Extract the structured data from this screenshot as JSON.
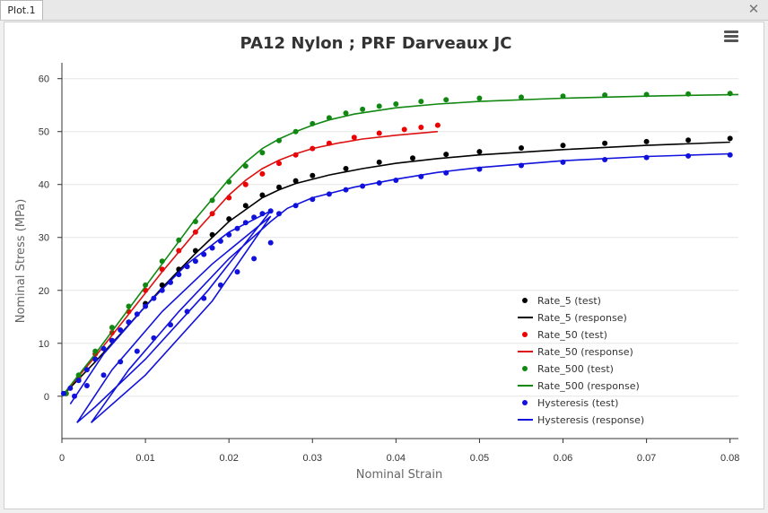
{
  "window": {
    "tab_label": "Plot.1",
    "close_glyph": "✕"
  },
  "toolbar": {
    "menu_icon": "hamburger-menu-icon"
  },
  "chart_data": {
    "type": "scatter",
    "title": "PA12 Nylon ; PRF Darveaux JC",
    "xlabel": "Nominal Strain",
    "ylabel": "Nominal Stress (MPa)",
    "xlim": [
      0,
      0.081
    ],
    "ylim": [
      -8,
      63
    ],
    "xticks": [
      0,
      0.01,
      0.02,
      0.03,
      0.04,
      0.05,
      0.06,
      0.07,
      0.08
    ],
    "xtick_labels": [
      "0",
      "0.01",
      "0.02",
      "0.03",
      "0.04",
      "0.05",
      "0.06",
      "0.07",
      "0.08"
    ],
    "yticks": [
      0,
      10,
      20,
      30,
      40,
      50,
      60
    ],
    "ytick_labels": [
      "0",
      "10",
      "20",
      "30",
      "40",
      "50",
      "60"
    ],
    "grid": "horizontal",
    "legend_position": "bottom-right",
    "series": [
      {
        "name": "Rate_5 (test)",
        "kind": "markers",
        "color": "#000000",
        "x": [
          0.0005,
          0.002,
          0.004,
          0.006,
          0.008,
          0.01,
          0.012,
          0.014,
          0.016,
          0.018,
          0.02,
          0.022,
          0.024,
          0.026,
          0.028,
          0.03,
          0.034,
          0.038,
          0.042,
          0.046,
          0.05,
          0.055,
          0.06,
          0.065,
          0.07,
          0.075,
          0.08
        ],
        "y": [
          0.5,
          3,
          7,
          10.5,
          14,
          17.5,
          21,
          24,
          27.5,
          30.5,
          33.5,
          36,
          38,
          39.5,
          40.7,
          41.7,
          43,
          44.2,
          45,
          45.7,
          46.2,
          46.9,
          47.4,
          47.8,
          48.1,
          48.4,
          48.7
        ]
      },
      {
        "name": "Rate_5 (response)",
        "kind": "line",
        "color": "#000000",
        "x": [
          0,
          0.004,
          0.008,
          0.012,
          0.016,
          0.02,
          0.024,
          0.026,
          0.028,
          0.032,
          0.036,
          0.04,
          0.045,
          0.05,
          0.06,
          0.07,
          0.08
        ],
        "y": [
          0,
          6.5,
          13.5,
          20.5,
          27,
          33,
          37.5,
          39,
          40.2,
          41.8,
          43,
          44,
          44.9,
          45.6,
          46.6,
          47.4,
          48
        ]
      },
      {
        "name": "Rate_50 (test)",
        "kind": "markers",
        "color": "#ee0000",
        "x": [
          0.0005,
          0.002,
          0.004,
          0.006,
          0.008,
          0.01,
          0.012,
          0.014,
          0.016,
          0.018,
          0.02,
          0.022,
          0.024,
          0.026,
          0.028,
          0.03,
          0.032,
          0.035,
          0.038,
          0.041,
          0.043,
          0.045
        ],
        "y": [
          0.5,
          3.5,
          8,
          12,
          16,
          20,
          24,
          27.5,
          31,
          34.5,
          37.5,
          40,
          42,
          44,
          45.6,
          46.8,
          47.8,
          48.9,
          49.7,
          50.4,
          50.8,
          51.2
        ]
      },
      {
        "name": "Rate_50 (response)",
        "kind": "line",
        "color": "#dd1111",
        "x": [
          0,
          0.004,
          0.008,
          0.012,
          0.016,
          0.02,
          0.022,
          0.024,
          0.026,
          0.028,
          0.03,
          0.033,
          0.036,
          0.04,
          0.045
        ],
        "y": [
          0,
          7.5,
          15.5,
          23.5,
          31,
          38,
          40.8,
          43,
          44.6,
          45.8,
          46.8,
          47.8,
          48.6,
          49.3,
          50
        ]
      },
      {
        "name": "Rate_500 (test)",
        "kind": "markers",
        "color": "#118811",
        "x": [
          0.0005,
          0.002,
          0.004,
          0.006,
          0.008,
          0.01,
          0.012,
          0.014,
          0.016,
          0.018,
          0.02,
          0.022,
          0.024,
          0.026,
          0.028,
          0.03,
          0.032,
          0.034,
          0.036,
          0.038,
          0.04,
          0.043,
          0.046,
          0.05,
          0.055,
          0.06,
          0.065,
          0.07,
          0.075,
          0.08
        ],
        "y": [
          0.5,
          4,
          8.5,
          13,
          17,
          21,
          25.5,
          29.5,
          33,
          37,
          40.5,
          43.5,
          46,
          48.3,
          50,
          51.5,
          52.6,
          53.5,
          54.2,
          54.8,
          55.2,
          55.7,
          56,
          56.3,
          56.5,
          56.7,
          56.9,
          57,
          57.1,
          57.2
        ]
      },
      {
        "name": "Rate_500 (response)",
        "kind": "line",
        "color": "#118811",
        "x": [
          0,
          0.004,
          0.008,
          0.012,
          0.016,
          0.02,
          0.022,
          0.024,
          0.026,
          0.028,
          0.03,
          0.032,
          0.035,
          0.04,
          0.045,
          0.05,
          0.06,
          0.07,
          0.081
        ],
        "y": [
          0,
          8,
          16.5,
          25,
          33.5,
          41,
          44.2,
          46.8,
          48.6,
          50,
          51.2,
          52.2,
          53.3,
          54.5,
          55.2,
          55.7,
          56.3,
          56.7,
          57
        ]
      },
      {
        "name": "Hysteresis (test)",
        "kind": "markers",
        "color": "#1111dd",
        "x": [
          0.0002,
          0.001,
          0.002,
          0.003,
          0.004,
          0.005,
          0.006,
          0.007,
          0.008,
          0.009,
          0.01,
          0.011,
          0.012,
          0.013,
          0.014,
          0.015,
          0.016,
          0.017,
          0.018,
          0.019,
          0.02,
          0.021,
          0.022,
          0.023,
          0.024,
          0.025,
          0.0015,
          0.003,
          0.005,
          0.007,
          0.009,
          0.011,
          0.013,
          0.015,
          0.017,
          0.019,
          0.021,
          0.023,
          0.025,
          0.026,
          0.028,
          0.03,
          0.032,
          0.034,
          0.036,
          0.038,
          0.04,
          0.043,
          0.046,
          0.05,
          0.055,
          0.06,
          0.065,
          0.07,
          0.075,
          0.08
        ],
        "y": [
          0.5,
          1.5,
          3,
          5,
          7,
          9,
          10.5,
          12.5,
          14,
          15.5,
          17,
          18.5,
          20,
          21.5,
          23,
          24.5,
          25.5,
          26.8,
          28,
          29.3,
          30.5,
          31.7,
          32.8,
          33.8,
          34.5,
          35,
          0,
          2,
          4,
          6.5,
          8.5,
          11,
          13.5,
          16,
          18.5,
          21,
          23.5,
          26,
          29,
          34.5,
          36,
          37.2,
          38.2,
          39,
          39.7,
          40.3,
          40.8,
          41.5,
          42.2,
          42.9,
          43.6,
          44.2,
          44.7,
          45.1,
          45.4,
          45.6
        ]
      },
      {
        "name": "Hysteresis (response)",
        "kind": "line",
        "color": "#1111dd",
        "x": [
          0.001,
          0.005,
          0.01,
          0.015,
          0.02,
          0.025,
          0.0175,
          0.01,
          0.004,
          0.0018,
          0.006,
          0.012,
          0.018,
          0.025,
          0.018,
          0.01,
          0.0035,
          0.008,
          0.014,
          0.02,
          0.025,
          0.027,
          0.03,
          0.035,
          0.04,
          0.045,
          0.05,
          0.06,
          0.07,
          0.08
        ],
        "y": [
          -1.5,
          8,
          17,
          25,
          31,
          35,
          20,
          7,
          -2,
          -5,
          5,
          16,
          25,
          34,
          18,
          4,
          -5,
          5,
          16,
          26,
          33,
          35.5,
          37.5,
          39.5,
          41,
          42.3,
          43.2,
          44.5,
          45.3,
          45.8
        ]
      }
    ]
  }
}
